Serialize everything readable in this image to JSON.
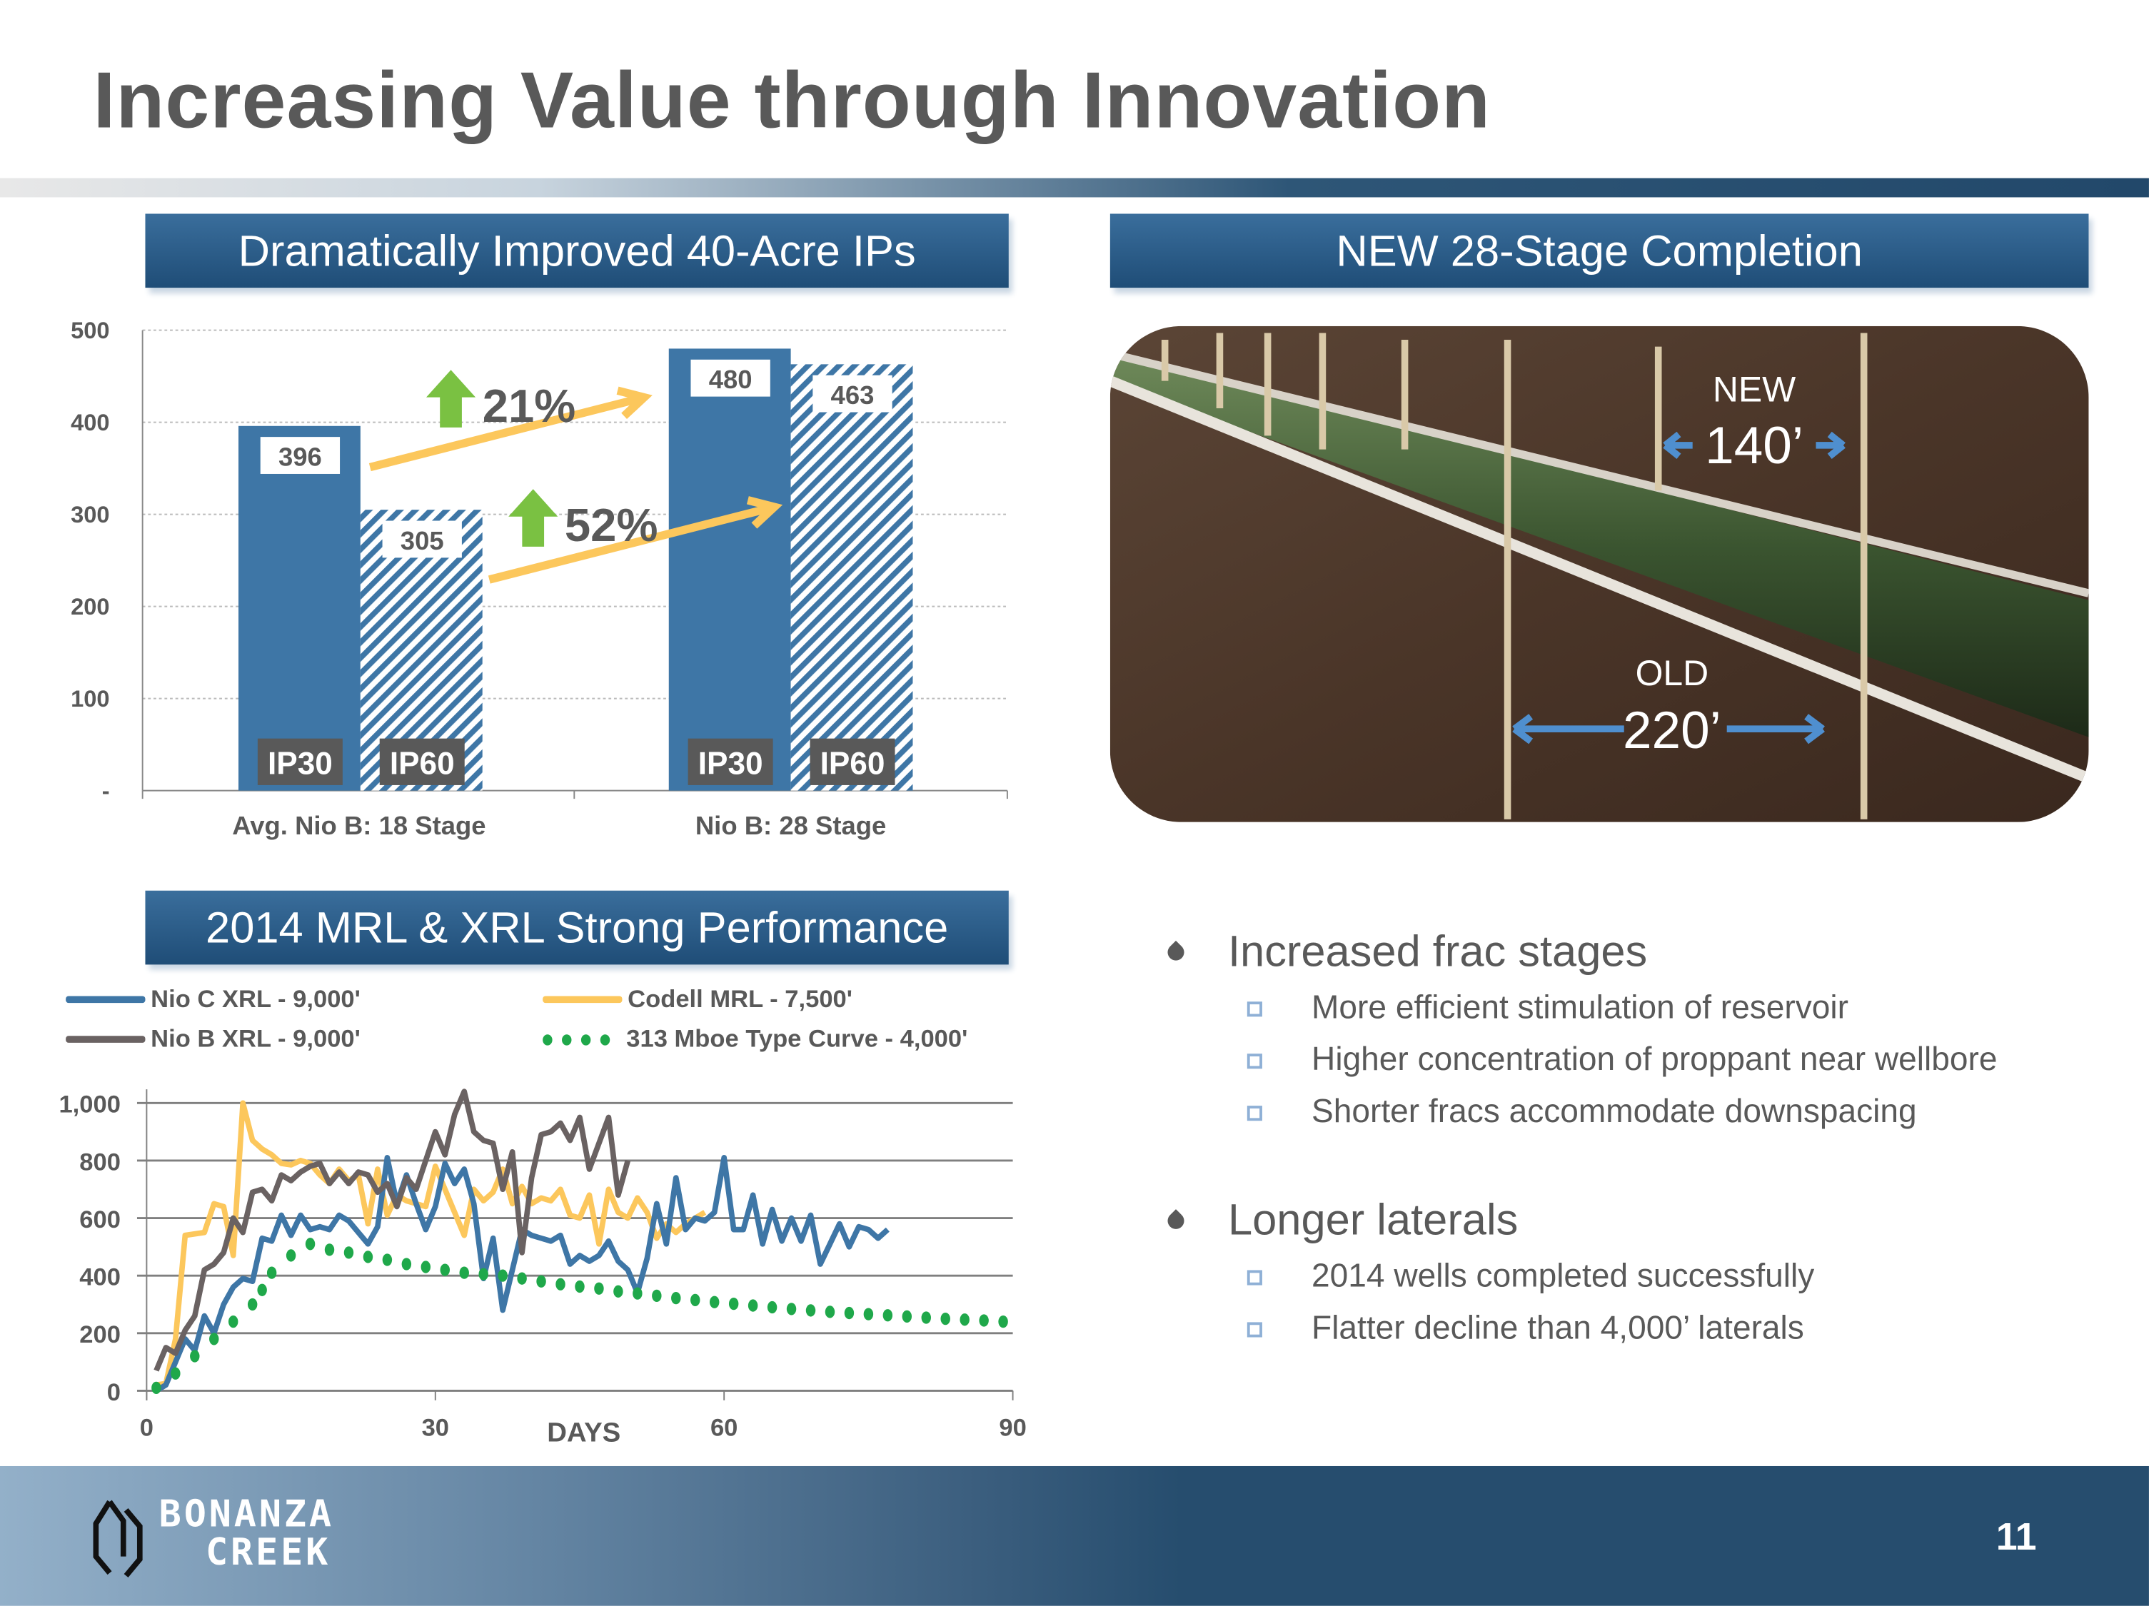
{
  "title": "Increasing Value through Innovation",
  "left_top_header": "Dramatically Improved 40-Acre IPs",
  "right_top_header": "NEW 28-Stage Completion",
  "left_bottom_header": "2014 MRL & XRL Strong Performance",
  "colors": {
    "blue": "#3e76a6",
    "gold": "#fcc75c",
    "gray": "#6a6262",
    "green": "#1fa84a",
    "arrow_green": "#7ac142"
  },
  "bar_chart": {
    "type": "bar",
    "ylim": [
      0,
      500
    ],
    "yticks": [
      "-",
      "100",
      "200",
      "300",
      "400",
      "500"
    ],
    "categories": [
      "Avg. Nio B: 18 Stage",
      "Nio B: 28 Stage"
    ],
    "series": [
      {
        "name": "IP30",
        "values": [
          396,
          480
        ]
      },
      {
        "name": "IP60",
        "values": [
          305,
          463
        ]
      }
    ],
    "value_labels": [
      "396",
      "305",
      "480",
      "463"
    ],
    "increase_labels": [
      "21%",
      "52%"
    ]
  },
  "chart_data": {
    "type": "line",
    "xlabel": "DAYS",
    "xlim": [
      0,
      90
    ],
    "ylim": [
      0,
      1000
    ],
    "xticks": [
      "0",
      "30",
      "60",
      "90"
    ],
    "yticks": [
      "0",
      "200",
      "400",
      "600",
      "800",
      "1,000"
    ],
    "legend": [
      "Nio C XRL - 9,000'",
      "Codell MRL - 7,500'",
      "Nio B XRL - 9,000'",
      "313 Mboe Type Curve - 4,000'"
    ],
    "series": [
      {
        "name": "Nio C XRL - 9,000'",
        "color": "#3e76a6",
        "points": [
          [
            1,
            0
          ],
          [
            2,
            20
          ],
          [
            3,
            100
          ],
          [
            4,
            180
          ],
          [
            5,
            140
          ],
          [
            6,
            260
          ],
          [
            7,
            200
          ],
          [
            8,
            300
          ],
          [
            9,
            360
          ],
          [
            10,
            390
          ],
          [
            11,
            380
          ],
          [
            12,
            530
          ],
          [
            13,
            520
          ],
          [
            14,
            610
          ],
          [
            15,
            540
          ],
          [
            16,
            610
          ],
          [
            17,
            560
          ],
          [
            18,
            570
          ],
          [
            19,
            560
          ],
          [
            20,
            610
          ],
          [
            21,
            590
          ],
          [
            22,
            550
          ],
          [
            23,
            510
          ],
          [
            24,
            570
          ],
          [
            25,
            810
          ],
          [
            26,
            650
          ],
          [
            27,
            750
          ],
          [
            28,
            650
          ],
          [
            29,
            560
          ],
          [
            30,
            640
          ],
          [
            31,
            790
          ],
          [
            32,
            720
          ],
          [
            33,
            770
          ],
          [
            34,
            650
          ],
          [
            35,
            390
          ],
          [
            36,
            530
          ],
          [
            37,
            280
          ],
          [
            38,
            420
          ],
          [
            39,
            560
          ],
          [
            40,
            540
          ],
          [
            41,
            530
          ],
          [
            42,
            520
          ],
          [
            43,
            540
          ],
          [
            44,
            440
          ],
          [
            45,
            470
          ],
          [
            46,
            450
          ],
          [
            47,
            470
          ],
          [
            48,
            520
          ],
          [
            49,
            450
          ],
          [
            50,
            420
          ],
          [
            51,
            340
          ],
          [
            52,
            460
          ],
          [
            53,
            650
          ],
          [
            54,
            510
          ],
          [
            55,
            740
          ],
          [
            56,
            560
          ],
          [
            57,
            600
          ],
          [
            58,
            590
          ],
          [
            59,
            620
          ],
          [
            60,
            810
          ],
          [
            61,
            560
          ],
          [
            62,
            560
          ],
          [
            63,
            680
          ],
          [
            64,
            510
          ],
          [
            65,
            630
          ],
          [
            66,
            520
          ],
          [
            67,
            600
          ],
          [
            68,
            520
          ],
          [
            69,
            610
          ],
          [
            70,
            440
          ],
          [
            71,
            510
          ],
          [
            72,
            580
          ],
          [
            73,
            500
          ],
          [
            74,
            570
          ],
          [
            75,
            560
          ],
          [
            76,
            530
          ],
          [
            77,
            560
          ]
        ]
      },
      {
        "name": "Codell MRL - 7,500'",
        "color": "#fcc75c",
        "points": [
          [
            1,
            20
          ],
          [
            2,
            25
          ],
          [
            3,
            180
          ],
          [
            4,
            540
          ],
          [
            5,
            545
          ],
          [
            6,
            550
          ],
          [
            7,
            650
          ],
          [
            8,
            640
          ],
          [
            9,
            470
          ],
          [
            10,
            1000
          ],
          [
            11,
            870
          ],
          [
            12,
            840
          ],
          [
            13,
            820
          ],
          [
            14,
            790
          ],
          [
            15,
            785
          ],
          [
            16,
            800
          ],
          [
            17,
            790
          ],
          [
            18,
            750
          ],
          [
            19,
            720
          ],
          [
            20,
            770
          ],
          [
            21,
            730
          ],
          [
            22,
            750
          ],
          [
            23,
            580
          ],
          [
            24,
            770
          ],
          [
            25,
            610
          ],
          [
            26,
            680
          ],
          [
            27,
            660
          ],
          [
            28,
            650
          ],
          [
            29,
            640
          ],
          [
            30,
            780
          ],
          [
            31,
            700
          ],
          [
            32,
            620
          ],
          [
            33,
            540
          ],
          [
            34,
            700
          ],
          [
            35,
            660
          ],
          [
            36,
            690
          ],
          [
            37,
            770
          ],
          [
            38,
            650
          ],
          [
            39,
            710
          ],
          [
            40,
            650
          ],
          [
            41,
            670
          ],
          [
            42,
            660
          ],
          [
            43,
            700
          ],
          [
            44,
            610
          ],
          [
            45,
            600
          ],
          [
            46,
            680
          ],
          [
            47,
            510
          ],
          [
            48,
            700
          ],
          [
            49,
            620
          ],
          [
            50,
            600
          ],
          [
            51,
            670
          ],
          [
            52,
            620
          ],
          [
            53,
            530
          ],
          [
            54,
            580
          ],
          [
            55,
            550
          ],
          [
            56,
            580
          ],
          [
            57,
            600
          ],
          [
            58,
            620
          ]
        ]
      },
      {
        "name": "Nio B XRL - 9,000'",
        "color": "#6a6262",
        "points": [
          [
            1,
            70
          ],
          [
            2,
            150
          ],
          [
            3,
            130
          ],
          [
            4,
            210
          ],
          [
            5,
            260
          ],
          [
            6,
            420
          ],
          [
            7,
            440
          ],
          [
            8,
            480
          ],
          [
            9,
            600
          ],
          [
            10,
            550
          ],
          [
            11,
            690
          ],
          [
            12,
            700
          ],
          [
            13,
            660
          ],
          [
            14,
            750
          ],
          [
            15,
            730
          ],
          [
            16,
            760
          ],
          [
            17,
            780
          ],
          [
            18,
            790
          ],
          [
            19,
            720
          ],
          [
            20,
            760
          ],
          [
            21,
            720
          ],
          [
            22,
            760
          ],
          [
            23,
            750
          ],
          [
            24,
            690
          ],
          [
            25,
            720
          ],
          [
            26,
            640
          ],
          [
            27,
            740
          ],
          [
            28,
            700
          ],
          [
            29,
            800
          ],
          [
            30,
            900
          ],
          [
            31,
            820
          ],
          [
            32,
            960
          ],
          [
            33,
            1040
          ],
          [
            34,
            900
          ],
          [
            35,
            870
          ],
          [
            36,
            860
          ],
          [
            37,
            700
          ],
          [
            38,
            830
          ],
          [
            39,
            480
          ],
          [
            40,
            740
          ],
          [
            41,
            890
          ],
          [
            42,
            900
          ],
          [
            43,
            930
          ],
          [
            44,
            870
          ],
          [
            45,
            950
          ],
          [
            46,
            770
          ],
          [
            47,
            860
          ],
          [
            48,
            950
          ],
          [
            49,
            680
          ],
          [
            50,
            800
          ]
        ]
      },
      {
        "name": "313 Mboe Type Curve - 4,000'",
        "color": "#1fa84a",
        "dotted": true,
        "points": [
          [
            1,
            10
          ],
          [
            3,
            60
          ],
          [
            5,
            120
          ],
          [
            7,
            180
          ],
          [
            9,
            240
          ],
          [
            11,
            300
          ],
          [
            12,
            350
          ],
          [
            13,
            410
          ],
          [
            15,
            470
          ],
          [
            17,
            510
          ],
          [
            19,
            490
          ],
          [
            21,
            480
          ],
          [
            23,
            465
          ],
          [
            25,
            455
          ],
          [
            27,
            440
          ],
          [
            29,
            430
          ],
          [
            31,
            420
          ],
          [
            33,
            410
          ],
          [
            35,
            405
          ],
          [
            37,
            400
          ],
          [
            39,
            390
          ],
          [
            41,
            380
          ],
          [
            43,
            370
          ],
          [
            45,
            362
          ],
          [
            47,
            355
          ],
          [
            49,
            345
          ],
          [
            51,
            338
          ],
          [
            53,
            330
          ],
          [
            55,
            322
          ],
          [
            57,
            315
          ],
          [
            59,
            308
          ],
          [
            61,
            302
          ],
          [
            63,
            296
          ],
          [
            65,
            290
          ],
          [
            67,
            284
          ],
          [
            69,
            279
          ],
          [
            71,
            274
          ],
          [
            73,
            270
          ],
          [
            75,
            266
          ],
          [
            77,
            262
          ],
          [
            79,
            258
          ],
          [
            81,
            254
          ],
          [
            83,
            250
          ],
          [
            85,
            247
          ],
          [
            87,
            244
          ],
          [
            89,
            240
          ]
        ]
      }
    ]
  },
  "image": {
    "new_label": "NEW",
    "new_spacing": "140’",
    "old_label": "OLD",
    "old_spacing": "220’"
  },
  "bullets": [
    {
      "text": "Increased frac stages",
      "sub": [
        "More efficient stimulation of reservoir",
        "Higher concentration of proppant near wellbore",
        "Shorter fracs accommodate downspacing"
      ]
    },
    {
      "text": "Longer laterals",
      "sub": [
        "2014 wells completed successfully",
        "Flatter decline than 4,000’ laterals"
      ]
    }
  ],
  "footer": {
    "logo_line1": "BONANZA",
    "logo_line2": "CREEK",
    "page_number": "11"
  }
}
